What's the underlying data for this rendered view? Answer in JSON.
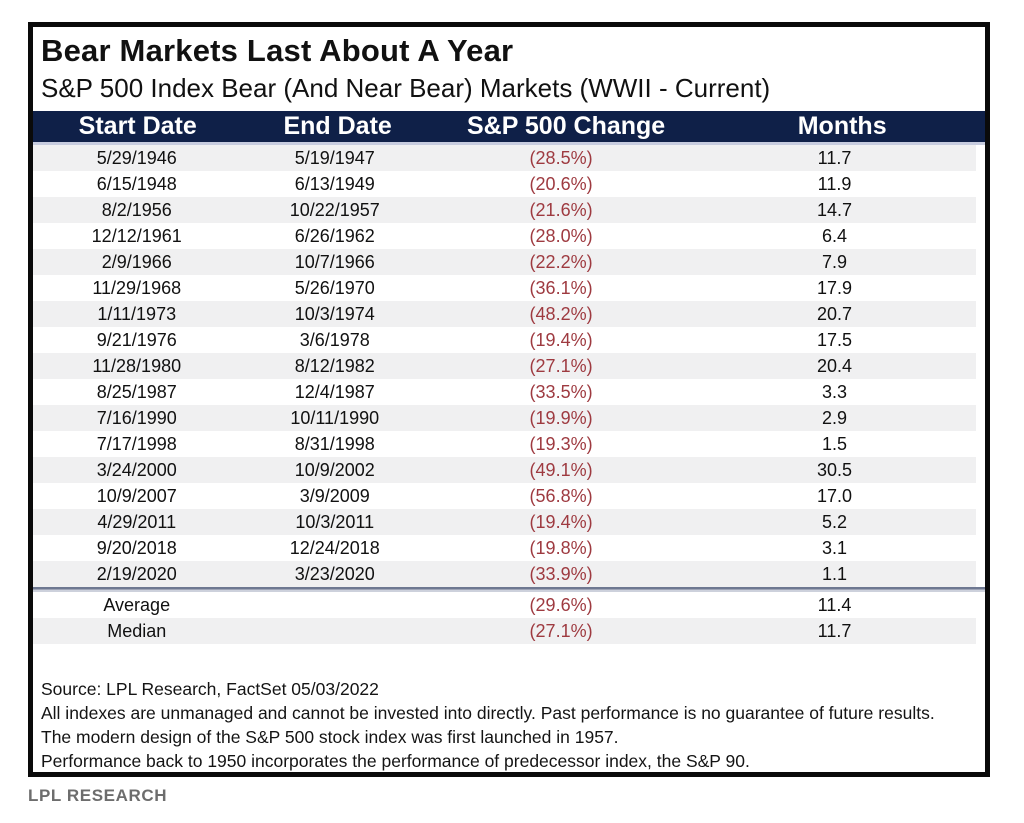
{
  "header": {
    "title": "Bear Markets Last About A Year",
    "subtitle": "S&P 500 Index Bear (And Near Bear) Markets (WWII - Current)"
  },
  "chart_data": {
    "type": "table",
    "title": "Bear Markets Last About A Year",
    "subtitle": "S&P 500 Index Bear (And Near Bear) Markets (WWII - Current)",
    "columns": [
      "Start Date",
      "End Date",
      "S&P 500 Change",
      "Months"
    ],
    "rows": [
      {
        "start": "5/29/1946",
        "end": "5/19/1947",
        "change": "(28.5%)",
        "months": "11.7"
      },
      {
        "start": "6/15/1948",
        "end": "6/13/1949",
        "change": "(20.6%)",
        "months": "11.9"
      },
      {
        "start": "8/2/1956",
        "end": "10/22/1957",
        "change": "(21.6%)",
        "months": "14.7"
      },
      {
        "start": "12/12/1961",
        "end": "6/26/1962",
        "change": "(28.0%)",
        "months": "6.4"
      },
      {
        "start": "2/9/1966",
        "end": "10/7/1966",
        "change": "(22.2%)",
        "months": "7.9"
      },
      {
        "start": "11/29/1968",
        "end": "5/26/1970",
        "change": "(36.1%)",
        "months": "17.9"
      },
      {
        "start": "1/11/1973",
        "end": "10/3/1974",
        "change": "(48.2%)",
        "months": "20.7"
      },
      {
        "start": "9/21/1976",
        "end": "3/6/1978",
        "change": "(19.4%)",
        "months": "17.5"
      },
      {
        "start": "11/28/1980",
        "end": "8/12/1982",
        "change": "(27.1%)",
        "months": "20.4"
      },
      {
        "start": "8/25/1987",
        "end": "12/4/1987",
        "change": "(33.5%)",
        "months": "3.3"
      },
      {
        "start": "7/16/1990",
        "end": "10/11/1990",
        "change": "(19.9%)",
        "months": "2.9"
      },
      {
        "start": "7/17/1998",
        "end": "8/31/1998",
        "change": "(19.3%)",
        "months": "1.5"
      },
      {
        "start": "3/24/2000",
        "end": "10/9/2002",
        "change": "(49.1%)",
        "months": "30.5"
      },
      {
        "start": "10/9/2007",
        "end": "3/9/2009",
        "change": "(56.8%)",
        "months": "17.0"
      },
      {
        "start": "4/29/2011",
        "end": "10/3/2011",
        "change": "(19.4%)",
        "months": "5.2"
      },
      {
        "start": "9/20/2018",
        "end": "12/24/2018",
        "change": "(19.8%)",
        "months": "3.1"
      },
      {
        "start": "2/19/2020",
        "end": "3/23/2020",
        "change": "(33.9%)",
        "months": "1.1"
      }
    ],
    "summary": [
      {
        "label": "Average",
        "change": "(29.6%)",
        "months": "11.4"
      },
      {
        "label": "Median",
        "change": "(27.1%)",
        "months": "11.7"
      }
    ]
  },
  "footnotes": {
    "line1": "Source: LPL Research, FactSet 05/03/2022",
    "line2": "All indexes are unmanaged and cannot be invested into directly. Past performance is no guarantee of future results.",
    "line3": "The modern design of the S&P 500 stock index was first launched in 1957.",
    "line4": "Performance back to 1950 incorporates the performance of predecessor index, the S&P 90."
  },
  "branding": "LPL RESEARCH",
  "colors": {
    "header_bg": "#0f2048",
    "change_red": "#9e3a40",
    "stripe": "#f0f0f1",
    "divider": "#6e7891",
    "border": "#0a0a0a",
    "branding_gray": "#6d6d6d"
  }
}
